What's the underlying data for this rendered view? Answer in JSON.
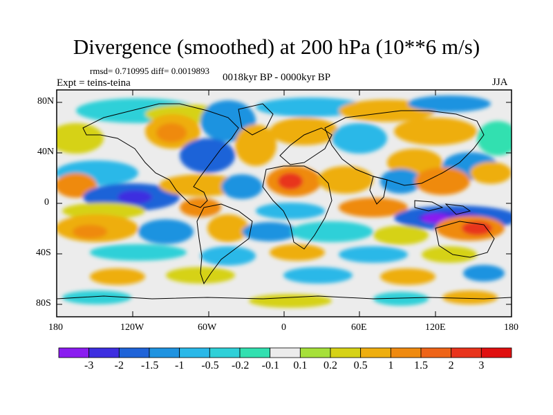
{
  "header": {
    "title": "Divergence (smoothed) at 200 hPa (10**6 m/s)",
    "stats": "rmsd= 0.710995 diff= 0.0019893",
    "experiment": "Expt = teins-teina",
    "period": "0018kyr BP - 0000kyr BP",
    "season": "JJA"
  },
  "axes": {
    "y_labels": [
      "80N",
      "40N",
      "0",
      "40S",
      "80S"
    ],
    "x_labels": [
      "180",
      "120W",
      "60W",
      "0",
      "60E",
      "120E",
      "180"
    ]
  },
  "colorbar": {
    "labels": [
      "-3",
      "-2",
      "-1.5",
      "-1",
      "-0.5",
      "-0.2",
      "-0.1",
      "0.1",
      "0.2",
      "0.5",
      "1",
      "1.5",
      "2",
      "3"
    ],
    "colors": [
      "#8a1cf0",
      "#3d2ee0",
      "#1f63d8",
      "#1f93e0",
      "#2ab8e8",
      "#2fd0d8",
      "#32e0b0",
      "#ececec",
      "#a6e03a",
      "#d6d216",
      "#eeae10",
      "#ef8a10",
      "#ee6418",
      "#e8341c",
      "#e01010"
    ]
  },
  "fill_colors": {
    "ocean_background": "#ececec",
    "coastline": "#000000"
  }
}
